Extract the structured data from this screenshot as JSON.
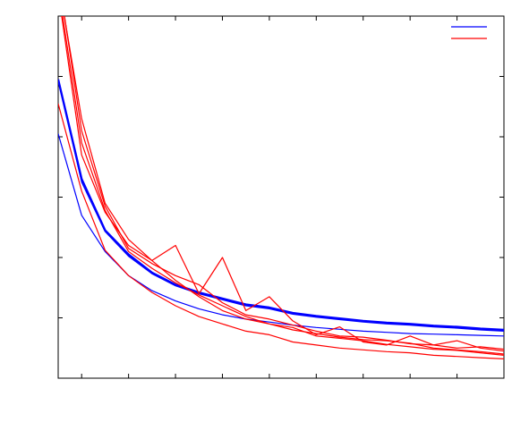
{
  "chart_data": {
    "type": "line",
    "title": "",
    "xlabel": "",
    "ylabel": "",
    "xlim": [
      0,
      19
    ],
    "ylim": [
      0,
      6
    ],
    "x_ticks": [
      1,
      3,
      5,
      7,
      9,
      11,
      13,
      15,
      17
    ],
    "y_ticks": [
      1,
      2,
      3,
      4,
      5
    ],
    "grid": false,
    "legend": {
      "placement": "top-right",
      "entries": [
        {
          "name": "",
          "color": "#0000ff"
        },
        {
          "name": "",
          "color": "#ff0000"
        }
      ]
    },
    "colors": {
      "blue": "#0000ff",
      "red": "#ff0000",
      "axis": "#000000"
    },
    "x": [
      0,
      1,
      2,
      3,
      4,
      5,
      6,
      7,
      8,
      9,
      10,
      11,
      12,
      13,
      14,
      15,
      16,
      17,
      18,
      19
    ],
    "series": [
      {
        "name": "",
        "color": "#0000ff",
        "width": 2.4,
        "values": [
          4.95,
          3.3,
          2.45,
          2.05,
          1.75,
          1.55,
          1.42,
          1.32,
          1.22,
          1.17,
          1.08,
          1.03,
          0.99,
          0.95,
          0.92,
          0.9,
          0.87,
          0.85,
          0.82,
          0.8
        ]
      },
      {
        "name": "",
        "color": "#0000ff",
        "width": 1.2,
        "values": [
          4.95,
          3.25,
          2.43,
          2.02,
          1.73,
          1.53,
          1.4,
          1.3,
          1.2,
          1.15,
          1.06,
          1.01,
          0.97,
          0.93,
          0.9,
          0.88,
          0.85,
          0.83,
          0.8,
          0.78
        ]
      },
      {
        "name": "",
        "color": "#0000ff",
        "width": 1.2,
        "values": [
          4.95,
          3.28,
          2.44,
          2.04,
          1.74,
          1.54,
          1.41,
          1.31,
          1.21,
          1.16,
          1.07,
          1.02,
          0.98,
          0.94,
          0.91,
          0.89,
          0.86,
          0.84,
          0.81,
          0.79
        ]
      },
      {
        "name": "",
        "color": "#0000ff",
        "width": 1.2,
        "values": [
          4.05,
          2.7,
          2.1,
          1.7,
          1.45,
          1.28,
          1.15,
          1.05,
          0.98,
          0.93,
          0.88,
          0.84,
          0.81,
          0.78,
          0.76,
          0.74,
          0.73,
          0.72,
          0.71,
          0.7
        ]
      },
      {
        "name": "",
        "color": "#ff0000",
        "width": 1.2,
        "values": [
          4.55,
          3.1,
          2.12,
          1.7,
          1.42,
          1.2,
          1.02,
          0.9,
          0.78,
          0.72,
          0.6,
          0.55,
          0.5,
          0.47,
          0.44,
          0.42,
          0.38,
          0.36,
          0.34,
          0.32
        ]
      },
      {
        "name": "",
        "color": "#ff0000",
        "width": 1.2,
        "values": [
          6.4,
          3.7,
          2.75,
          2.2,
          1.95,
          1.62,
          1.35,
          1.12,
          0.98,
          0.9,
          0.8,
          0.74,
          0.68,
          0.64,
          0.62,
          0.58,
          0.5,
          0.47,
          0.44,
          0.4
        ]
      },
      {
        "name": "",
        "color": "#ff0000",
        "width": 1.2,
        "values": [
          6.6,
          4.3,
          2.9,
          2.3,
          1.95,
          2.2,
          1.4,
          2.0,
          1.12,
          1.35,
          0.95,
          0.72,
          0.85,
          0.6,
          0.55,
          0.7,
          0.55,
          0.62,
          0.5,
          0.45
        ]
      },
      {
        "name": "",
        "color": "#ff0000",
        "width": 1.2,
        "values": [
          6.7,
          4.1,
          2.85,
          2.15,
          1.9,
          1.7,
          1.55,
          1.25,
          1.05,
          0.98,
          0.88,
          0.78,
          0.7,
          0.68,
          0.63,
          0.57,
          0.55,
          0.5,
          0.52,
          0.48
        ]
      },
      {
        "name": "",
        "color": "#ff0000",
        "width": 1.2,
        "values": [
          6.5,
          3.9,
          2.78,
          2.1,
          1.82,
          1.58,
          1.38,
          1.2,
          1.02,
          0.9,
          0.84,
          0.7,
          0.66,
          0.62,
          0.56,
          0.52,
          0.48,
          0.46,
          0.42,
          0.38
        ]
      }
    ]
  }
}
